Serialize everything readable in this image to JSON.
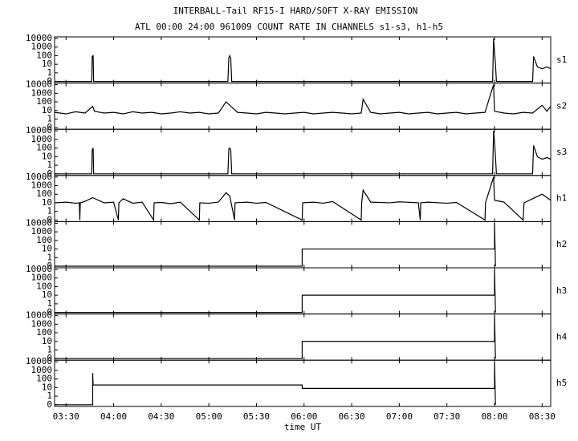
{
  "chart_data": {
    "type": "line",
    "title": "INTERBALL-Tail RF15-I HARD/SOFT X-RAY EMISSION",
    "subtitle": "ATL 00:00 24:00 961009  COUNT RATE IN CHANNELS s1-s3, h1-h5",
    "x_label": "time UT",
    "log_y": true,
    "color": "#000000",
    "xlim": [
      3.38,
      8.59
    ],
    "xticks": [
      {
        "value": 3.5,
        "label": "03:30"
      },
      {
        "value": 4.0,
        "label": "04:00"
      },
      {
        "value": 4.5,
        "label": "04:30"
      },
      {
        "value": 5.0,
        "label": "05:00"
      },
      {
        "value": 5.5,
        "label": "05:30"
      },
      {
        "value": 6.0,
        "label": "06:00"
      },
      {
        "value": 6.5,
        "label": "06:30"
      },
      {
        "value": 7.0,
        "label": "07:00"
      },
      {
        "value": 7.5,
        "label": "07:30"
      },
      {
        "value": 8.0,
        "label": "08:00"
      },
      {
        "value": 8.5,
        "label": "08:30"
      }
    ],
    "ylim": [
      0.1,
      10000
    ],
    "yticks": [
      {
        "value": 0.1,
        "label": "0"
      },
      1,
      10,
      100,
      1000,
      10000
    ],
    "panels": [
      {
        "name": "s1",
        "x": [
          3.38,
          3.77,
          3.775,
          3.785,
          3.79,
          5.2,
          5.21,
          5.22,
          5.23,
          5.24,
          7.98,
          7.99,
          8.0,
          8.01,
          8.02,
          8.4,
          8.41,
          8.45,
          8.5,
          8.55,
          8.59
        ],
        "values": [
          0.1,
          0.1,
          80,
          100,
          0.1,
          0.1,
          60,
          100,
          50,
          0.1,
          0.1,
          10000,
          300,
          10,
          0.1,
          0.1,
          80,
          5,
          3,
          5,
          3
        ]
      },
      {
        "name": "s2",
        "x": [
          3.38,
          3.5,
          3.6,
          3.7,
          3.78,
          3.8,
          3.9,
          4.0,
          4.1,
          4.2,
          4.3,
          4.4,
          4.5,
          4.6,
          4.7,
          4.8,
          4.9,
          5.0,
          5.1,
          5.18,
          5.22,
          5.3,
          5.4,
          5.5,
          5.6,
          5.7,
          5.8,
          5.9,
          6.0,
          6.1,
          6.2,
          6.3,
          6.4,
          6.5,
          6.6,
          6.62,
          6.7,
          6.8,
          6.9,
          7.0,
          7.1,
          7.2,
          7.3,
          7.4,
          7.5,
          7.6,
          7.7,
          7.8,
          7.9,
          7.99,
          8.0,
          8.1,
          8.2,
          8.3,
          8.4,
          8.5,
          8.55,
          8.59
        ],
        "values": [
          6,
          4,
          7,
          5,
          30,
          8,
          5,
          6,
          4,
          7,
          5,
          6,
          4,
          5,
          7,
          5,
          6,
          4,
          5,
          100,
          40,
          6,
          5,
          4,
          6,
          5,
          4,
          5,
          6,
          4,
          5,
          6,
          5,
          4,
          5,
          200,
          6,
          4,
          5,
          6,
          4,
          5,
          6,
          4,
          5,
          6,
          4,
          5,
          6,
          10000,
          8,
          5,
          4,
          6,
          5,
          40,
          8,
          30
        ]
      },
      {
        "name": "s3",
        "x": [
          3.38,
          3.77,
          3.775,
          3.785,
          3.79,
          5.2,
          5.21,
          5.22,
          5.23,
          5.24,
          7.98,
          7.99,
          8.0,
          8.01,
          8.02,
          8.4,
          8.41,
          8.45,
          8.5,
          8.55,
          8.59
        ],
        "values": [
          0.1,
          0.1,
          60,
          100,
          0.1,
          0.1,
          80,
          100,
          60,
          0.1,
          0.1,
          10000,
          500,
          10,
          0.1,
          0.1,
          200,
          10,
          5,
          8,
          5
        ]
      },
      {
        "name": "h1",
        "x": [
          3.38,
          3.5,
          3.6,
          3.64,
          3.645,
          3.65,
          3.7,
          3.78,
          3.9,
          4.0,
          4.05,
          4.055,
          4.1,
          4.2,
          4.3,
          4.42,
          4.425,
          4.5,
          4.6,
          4.7,
          4.9,
          4.905,
          5.0,
          5.1,
          5.18,
          5.22,
          5.27,
          5.275,
          5.4,
          5.5,
          5.6,
          5.98,
          5.985,
          6.1,
          6.2,
          6.3,
          6.6,
          6.605,
          6.62,
          6.7,
          6.9,
          7.0,
          7.2,
          7.22,
          7.225,
          7.3,
          7.5,
          7.6,
          7.9,
          7.905,
          7.99,
          8.0,
          8.1,
          8.3,
          8.31,
          8.4,
          8.5,
          8.59
        ],
        "values": [
          10,
          12,
          9,
          10,
          0.1,
          10,
          15,
          40,
          10,
          12,
          0.1,
          10,
          30,
          9,
          12,
          0.1,
          10,
          11,
          8,
          12,
          0.1,
          10,
          9,
          12,
          150,
          60,
          0.1,
          10,
          12,
          9,
          11,
          0.1,
          10,
          12,
          9,
          14,
          0.1,
          10,
          300,
          12,
          10,
          13,
          10,
          0.1,
          10,
          12,
          9,
          11,
          0.1,
          10,
          10000,
          20,
          12,
          0.1,
          10,
          30,
          100,
          20
        ]
      },
      {
        "name": "h2",
        "x": [
          3.38,
          5.98,
          5.98,
          8.0,
          8.0,
          8.01
        ],
        "values": [
          0.1,
          0.1,
          10,
          10,
          10000,
          0.1
        ]
      },
      {
        "name": "h3",
        "x": [
          3.38,
          5.98,
          5.98,
          8.0,
          8.0,
          8.01
        ],
        "values": [
          0.1,
          0.1,
          10,
          10,
          10000,
          0.1
        ]
      },
      {
        "name": "h4",
        "x": [
          3.38,
          5.98,
          5.98,
          8.0,
          8.0,
          8.01
        ],
        "values": [
          0.1,
          0.1,
          10,
          10,
          10000,
          0.1
        ]
      },
      {
        "name": "h5",
        "x": [
          3.38,
          3.78,
          3.78,
          3.785,
          5.98,
          5.98,
          8.0,
          8.0,
          8.01
        ],
        "values": [
          0.1,
          0.1,
          500,
          20,
          20,
          8,
          8,
          10000,
          0.1
        ]
      }
    ]
  }
}
